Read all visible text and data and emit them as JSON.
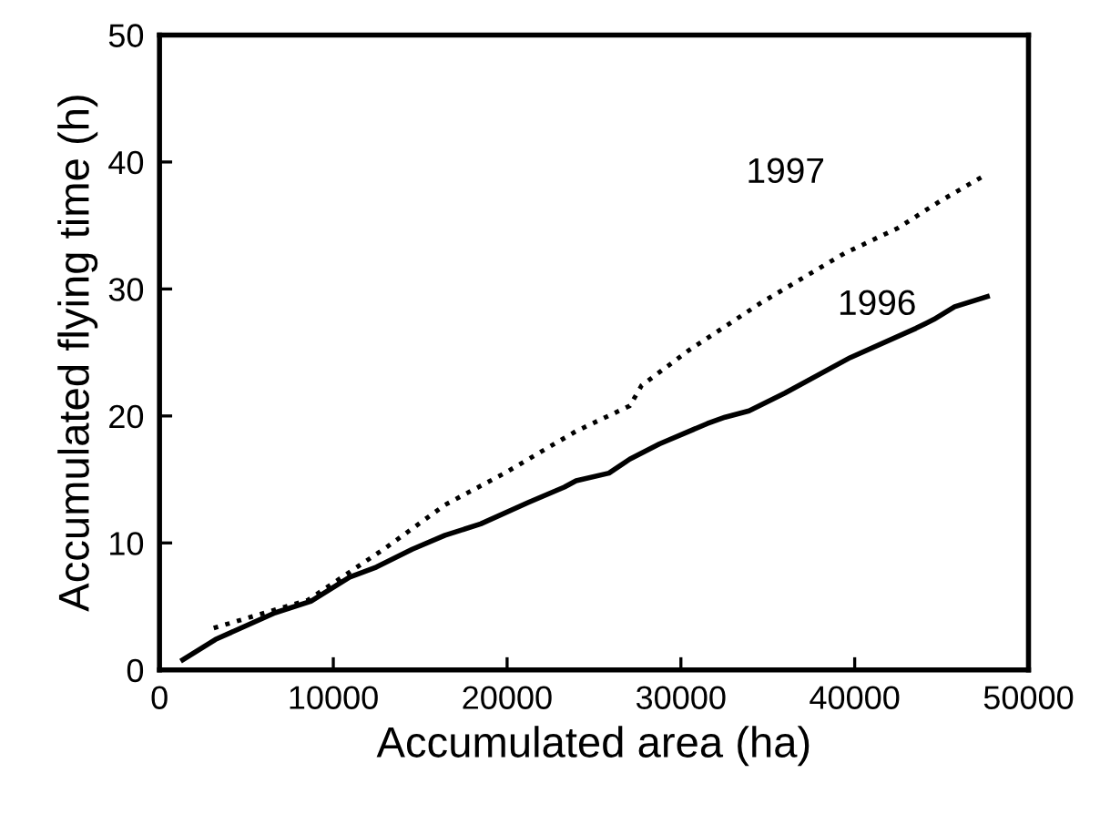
{
  "chart_data": {
    "type": "line",
    "xlabel": "Accumulated area (ha)",
    "ylabel": "Accumulated flying time (h)",
    "xlim": [
      0,
      50000
    ],
    "xticks": [
      0,
      10000,
      20000,
      30000,
      40000,
      50000
    ],
    "ylim": [
      0,
      50
    ],
    "yticks": [
      0,
      10,
      20,
      30,
      40,
      50
    ],
    "grid": false,
    "legend": false,
    "marker": "none",
    "series": [
      {
        "name": "1996",
        "color": "#000000",
        "line_style": "solid",
        "x": [
          1340,
          3220,
          6650,
          8710,
          10940,
          12480,
          14540,
          16430,
          18480,
          21230,
          23290,
          23970,
          25860,
          27060,
          28770,
          31520,
          32540,
          33920,
          35980,
          39750,
          43520,
          44550,
          45750,
          47630
        ],
        "values": [
          0.8,
          2.4,
          4.5,
          5.4,
          7.3,
          8.1,
          9.5,
          10.6,
          11.5,
          13.2,
          14.4,
          14.9,
          15.5,
          16.6,
          17.8,
          19.4,
          19.9,
          20.4,
          21.8,
          24.6,
          26.9,
          27.6,
          28.6,
          29.4
        ]
      },
      {
        "name": "1997",
        "color": "#000000",
        "line_style": "dotted",
        "x": [
          3120,
          8540,
          13000,
          16430,
          19860,
          23970,
          27060,
          27740,
          30490,
          34600,
          39400,
          42490,
          44890,
          47290
        ],
        "values": [
          3.3,
          5.5,
          9.6,
          13.0,
          15.5,
          18.8,
          20.8,
          22.4,
          25.2,
          28.9,
          32.8,
          34.8,
          36.9,
          38.8
        ]
      }
    ]
  }
}
